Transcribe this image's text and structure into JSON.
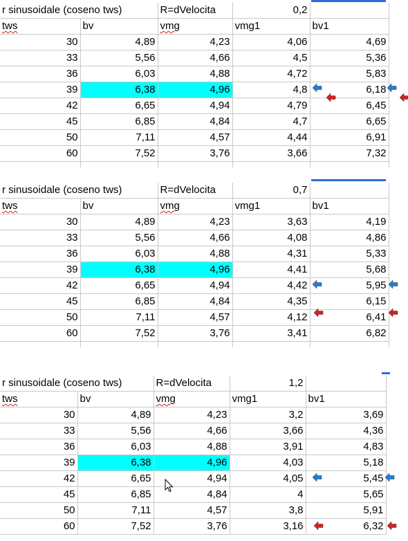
{
  "tables": [
    {
      "title": "r sinusoidale (coseno tws)",
      "r_label": "R=dVelocita",
      "r_value": "0,2",
      "headers": [
        "tws",
        "bv",
        "vmg",
        "vmg1",
        "bv1"
      ],
      "rows": [
        [
          "30",
          "4,89",
          "4,23",
          "4,06",
          "4,69"
        ],
        [
          "33",
          "5,56",
          "4,66",
          "4,5",
          "5,36"
        ],
        [
          "36",
          "6,03",
          "4,88",
          "4,72",
          "5,83"
        ],
        [
          "39",
          "6,38",
          "4,96",
          "4,8",
          "6,18"
        ],
        [
          "42",
          "6,65",
          "4,94",
          "4,79",
          "6,45"
        ],
        [
          "45",
          "6,85",
          "4,84",
          "4,7",
          "6,65"
        ],
        [
          "50",
          "7,11",
          "4,57",
          "4,44",
          "6,91"
        ],
        [
          "60",
          "7,52",
          "3,76",
          "3,66",
          "7,32"
        ]
      ]
    },
    {
      "title": "r sinusoidale (coseno tws)",
      "r_label": "R=dVelocita",
      "r_value": "0,7",
      "headers": [
        "tws",
        "bv",
        "vmg",
        "vmg1",
        "bv1"
      ],
      "rows": [
        [
          "30",
          "4,89",
          "4,23",
          "3,63",
          "4,19"
        ],
        [
          "33",
          "5,56",
          "4,66",
          "4,08",
          "4,86"
        ],
        [
          "36",
          "6,03",
          "4,88",
          "4,31",
          "5,33"
        ],
        [
          "39",
          "6,38",
          "4,96",
          "4,41",
          "5,68"
        ],
        [
          "42",
          "6,65",
          "4,94",
          "4,42",
          "5,95"
        ],
        [
          "45",
          "6,85",
          "4,84",
          "4,35",
          "6,15"
        ],
        [
          "50",
          "7,11",
          "4,57",
          "4,12",
          "6,41"
        ],
        [
          "60",
          "7,52",
          "3,76",
          "3,41",
          "6,82"
        ]
      ]
    },
    {
      "title": "r sinusoidale (coseno tws)",
      "r_label": "R=dVelocita",
      "r_value": "1,2",
      "headers": [
        "tws",
        "bv",
        "vmg",
        "vmg1",
        "bv1"
      ],
      "rows": [
        [
          "30",
          "4,89",
          "4,23",
          "3,2",
          "3,69"
        ],
        [
          "33",
          "5,56",
          "4,66",
          "3,66",
          "4,36"
        ],
        [
          "36",
          "6,03",
          "4,88",
          "3,91",
          "4,83"
        ],
        [
          "39",
          "6,38",
          "4,96",
          "4,03",
          "5,18"
        ],
        [
          "42",
          "6,65",
          "4,94",
          "4,05",
          "5,45"
        ],
        [
          "45",
          "6,85",
          "4,84",
          "4",
          "5,65"
        ],
        [
          "50",
          "7,11",
          "4,57",
          "3,8",
          "5,91"
        ],
        [
          "60",
          "7,52",
          "3,76",
          "3,16",
          "6,32"
        ]
      ]
    }
  ],
  "highlight_color": "#00ffff",
  "arrow_colors": {
    "blue": "#1e7fd8",
    "red": "#d42020"
  },
  "icons": [
    "left-arrow-marker-icon",
    "mouse-pointer-icon"
  ]
}
